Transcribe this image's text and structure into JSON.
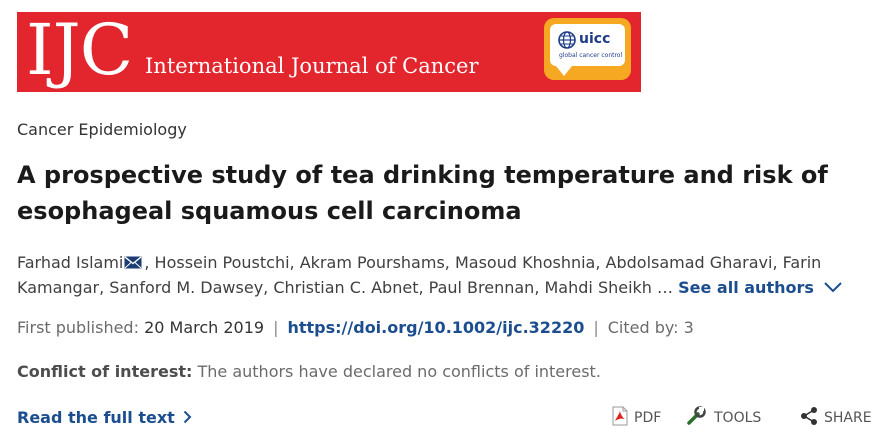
{
  "banner": {
    "logo_text": "IJC",
    "journal_title": "International Journal of Cancer",
    "partner_logo": "uicc",
    "partner_subtitle": "global cancer control",
    "colors": {
      "banner_bg": "#e3252d",
      "partner_bg": "#f7a823"
    }
  },
  "article": {
    "section": "Cancer Epidemiology",
    "title": "A prospective study of tea drinking temperature and risk of esophageal squamous cell carcinoma",
    "authors": [
      "Farhad Islami",
      "Hossein Poustchi",
      "Akram Pourshams",
      "Masoud Khoshnia",
      "Abdolsamad Gharavi",
      "Farin Kamangar",
      "Sanford M. Dawsey",
      "Christian C. Abnet",
      "Paul Brennan",
      "Mahdi Sheikh"
    ],
    "ellipsis": "…",
    "see_all": "See all authors",
    "first_published_label": "First published:",
    "first_published": "20 March 2019",
    "doi": "https://doi.org/10.1002/ijc.32220",
    "cited_by": "Cited by: 3",
    "separator": "|",
    "coi_label": "Conflict of interest:",
    "coi_text": "The authors have declared no conflicts of interest.",
    "read_full": "Read the full text"
  },
  "toolbar": {
    "pdf_label": "PDF",
    "tools_label": "TOOLS",
    "share_label": "SHARE"
  },
  "colors": {
    "link": "#1c4e8f"
  }
}
